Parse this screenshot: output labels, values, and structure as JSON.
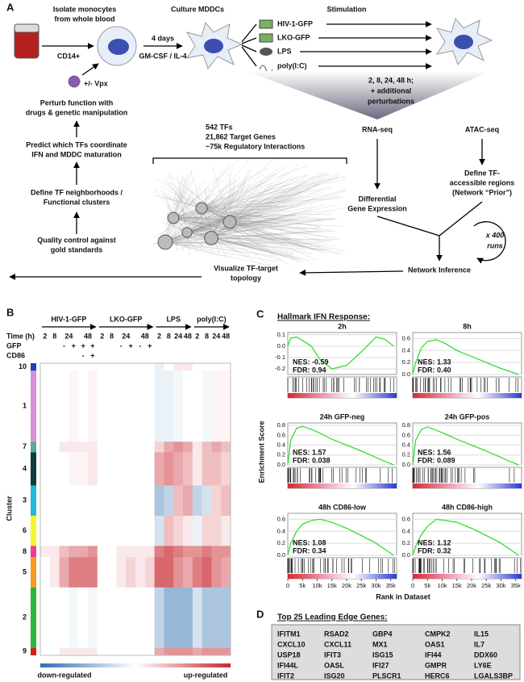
{
  "panel_a": {
    "label": "A",
    "isolate": [
      "Isolate monocytes",
      "from whole blood"
    ],
    "cd14": "CD14+",
    "vpx": "+/- Vpx",
    "culture": "Culture MDDCs",
    "days": "4 days",
    "cytokines": "GM-CSF / IL-4",
    "stimulation": "Stimulation",
    "stimuli": [
      "HIV-1-GFP",
      "LKO-GFP",
      "LPS",
      "poly(I:C)"
    ],
    "timepoints": [
      "2, 8, 24, 48 h;",
      "+ additional",
      "perturbations"
    ],
    "rna_seq": "RNA-seq",
    "atac_seq": "ATAC-seq",
    "differential": [
      "Differential",
      "Gene Expression"
    ],
    "define_regions": [
      "Define TF-",
      "accessible regions",
      "(Network “Prior”)"
    ],
    "runs": [
      "x 400",
      "runs"
    ],
    "network_inference": "Network Inference",
    "visualize": [
      "Visualize TF-target",
      "topology"
    ],
    "network_stats": [
      "542 TFs",
      "21,862 Target Genes",
      "~75k Regulatory Interactions"
    ],
    "pipeline": [
      [
        "Perturb function with",
        "drugs & genetic manipulation"
      ],
      [
        "Predict which TFs coordinate",
        "IFN and MDDC maturation"
      ],
      [
        "Define TF neighborhoods /",
        "Functional clusters"
      ],
      [
        "Quality control against",
        "gold standards"
      ]
    ]
  },
  "panel_b": {
    "label": "B",
    "groups": [
      {
        "name": "HIV-1-GFP",
        "times": [
          2,
          8,
          24,
          48
        ]
      },
      {
        "name": "LKO-GFP",
        "times": [
          2,
          8,
          24,
          48
        ]
      },
      {
        "name": "LPS",
        "times": [
          2,
          8,
          24,
          48
        ]
      },
      {
        "name": "poly(I:C)",
        "times": [
          2,
          8,
          24,
          48
        ]
      }
    ],
    "row_labels": [
      "Time (h)",
      "GFP",
      "CD86"
    ],
    "gfp": [
      null,
      null,
      "-",
      "+",
      "+",
      "+",
      null,
      null,
      "-",
      "+",
      "-",
      "+",
      null,
      null,
      null,
      null,
      null,
      null,
      null,
      null
    ],
    "cd86": [
      null,
      null,
      null,
      null,
      "-",
      "+",
      null,
      null,
      null,
      null,
      null,
      null,
      null,
      null,
      null,
      null,
      null,
      null,
      null,
      null
    ],
    "cluster_label": "Cluster",
    "clusters": [
      {
        "label": "10",
        "color": "#1f3fbf",
        "values": [
          0,
          0,
          0,
          0,
          0,
          0,
          0,
          0,
          0,
          0,
          0,
          0,
          -0.1,
          0,
          0.1,
          0.1,
          0,
          0,
          0,
          0
        ]
      },
      {
        "label": "1",
        "color": "#d88fd8",
        "values": [
          0,
          0,
          0,
          0.05,
          0,
          0.05,
          0,
          0,
          0,
          0,
          0,
          0,
          -0.1,
          -0.1,
          -0.05,
          0,
          0,
          -0.05,
          0.05,
          0.05
        ]
      },
      {
        "label": "7",
        "color": "#5aa89a",
        "values": [
          0,
          0,
          0.1,
          0.1,
          0.1,
          0.1,
          0,
          0,
          0,
          0,
          0,
          0,
          0.2,
          0.4,
          0.5,
          0.4,
          0.1,
          0.3,
          0.4,
          0.3
        ]
      },
      {
        "label": "4",
        "color": "#0e3c3c",
        "values": [
          0,
          0,
          0,
          0.05,
          0.05,
          0.1,
          0,
          0,
          0,
          0,
          0,
          0,
          0.4,
          0.5,
          0.4,
          0.3,
          0.1,
          0.3,
          0.3,
          0.2
        ]
      },
      {
        "label": "3",
        "color": "#22b8d8",
        "values": [
          0,
          0,
          0,
          0,
          0,
          0,
          0,
          0,
          0,
          0,
          0,
          0,
          -0.4,
          -0.3,
          0.3,
          0.4,
          -0.3,
          -0.2,
          0.2,
          0.3
        ]
      },
      {
        "label": "6",
        "color": "#f5f532",
        "values": [
          0,
          0,
          0,
          0,
          0,
          0,
          0,
          0,
          0,
          0,
          0,
          0,
          -0.2,
          0.3,
          0.2,
          0.1,
          -0.1,
          0.2,
          0.2,
          0.1
        ]
      },
      {
        "label": "8",
        "color": "#f03c8c",
        "values": [
          0.1,
          0.1,
          0.3,
          0.4,
          0.4,
          0.5,
          0,
          0,
          0.1,
          0.1,
          0.1,
          0.1,
          0.6,
          0.7,
          0.6,
          0.5,
          0.5,
          0.6,
          0.5,
          0.5
        ]
      },
      {
        "label": "5",
        "color": "#f59a1e",
        "values": [
          0,
          0.1,
          0.4,
          0.6,
          0.6,
          0.6,
          0,
          0,
          0.1,
          0.2,
          0.1,
          0.2,
          0.7,
          0.7,
          0.5,
          0.4,
          0.6,
          0.7,
          0.5,
          0.4
        ]
      },
      {
        "label": "2",
        "color": "#2fb43a",
        "values": [
          0,
          0,
          0,
          -0.05,
          0,
          -0.05,
          0,
          0,
          0,
          0,
          0,
          0,
          -0.3,
          -0.5,
          -0.5,
          -0.5,
          -0.2,
          -0.4,
          -0.4,
          -0.4
        ]
      },
      {
        "label": "9",
        "color": "#d42020",
        "values": [
          0,
          0,
          0.1,
          0.1,
          0.1,
          0.1,
          0,
          0,
          0,
          0,
          0,
          0,
          0.4,
          0.5,
          0.5,
          0.5,
          0.4,
          0.5,
          0.5,
          0.5
        ]
      }
    ],
    "colors": {
      "low": "#2f6fb0",
      "mid": "#ffffff",
      "high": "#c8262e"
    },
    "limits": [
      -1,
      1
    ],
    "legend": [
      "down-regulated",
      "up-regulated"
    ]
  },
  "panel_c": {
    "label": "C",
    "title": "Hallmark IFN Response:",
    "ylabel": "Enrichment Score",
    "xlabel": "Rank in Dataset",
    "color": "#33dd33",
    "xlim": [
      0,
      37000
    ],
    "xticks": [
      0,
      {
        "value": 5000,
        "label": "5k"
      },
      {
        "value": 10000,
        "label": "10k"
      },
      {
        "value": 15000,
        "label": "15k"
      },
      {
        "value": 20000,
        "label": "20k"
      },
      {
        "value": 25000,
        "label": "25k"
      },
      {
        "value": 30000,
        "label": "30k"
      },
      {
        "value": 35000,
        "label": "35k"
      }
    ],
    "x": [
      0,
      1000,
      3000,
      5000,
      8000,
      11000,
      15000,
      20000,
      25000,
      30000,
      33000,
      36000
    ],
    "plots": [
      {
        "title": "2h",
        "nes": "NES: -0.59",
        "fdr": "FDR: 0.94",
        "ylim": [
          -0.25,
          0.12
        ],
        "yticks": [
          0.1,
          {
            "value": 0,
            "label": "0.0"
          },
          -0.1,
          -0.2
        ],
        "values": [
          0,
          0.07,
          0.08,
          0.05,
          0,
          -0.12,
          -0.2,
          -0.17,
          -0.05,
          0.08,
          0.06,
          0
        ]
      },
      {
        "title": "8h",
        "nes": "NES: 1.33",
        "fdr": "FDR: 0.40",
        "ylim": [
          0,
          0.7
        ],
        "yticks": [
          0.6,
          0.4,
          0.2,
          {
            "value": 0,
            "label": "0.0"
          }
        ],
        "values": [
          0,
          0.2,
          0.45,
          0.55,
          0.58,
          0.52,
          0.4,
          0.3,
          0.2,
          0.1,
          0.05,
          0
        ]
      },
      {
        "title": "24h GFP-neg",
        "nes": "NES: 1.57",
        "fdr": "FDR: 0.038",
        "ylim": [
          0,
          0.85
        ],
        "yticks": [
          0.8,
          0.6,
          0.4,
          0.2,
          {
            "value": 0,
            "label": "0.0"
          }
        ],
        "values": [
          0,
          0.5,
          0.74,
          0.78,
          0.72,
          0.64,
          0.52,
          0.4,
          0.28,
          0.15,
          0.07,
          0
        ]
      },
      {
        "title": "24h GFP-pos",
        "nes": "NES: 1.56",
        "fdr": "FDR: 0.089",
        "ylim": [
          0,
          0.85
        ],
        "yticks": [
          0.8,
          0.6,
          0.4,
          0.2,
          {
            "value": 0,
            "label": "0.0"
          }
        ],
        "values": [
          0,
          0.5,
          0.72,
          0.77,
          0.7,
          0.63,
          0.52,
          0.4,
          0.28,
          0.15,
          0.07,
          0
        ]
      },
      {
        "title": "48h CD86-low",
        "nes": "NES: 1.08",
        "fdr": "FDR: 0.34",
        "ylim": [
          0,
          0.7
        ],
        "yticks": [
          0.6,
          0.4,
          0.2,
          {
            "value": 0,
            "label": "0.0"
          }
        ],
        "values": [
          0,
          0.2,
          0.4,
          0.52,
          0.58,
          0.6,
          0.55,
          0.45,
          0.33,
          0.2,
          0.1,
          0
        ]
      },
      {
        "title": "48h CD86-high",
        "nes": "NES: 1.12",
        "fdr": "FDR: 0.32",
        "ylim": [
          0,
          0.7
        ],
        "yticks": [
          0.6,
          0.4,
          0.2,
          {
            "value": 0,
            "label": "0.0"
          }
        ],
        "values": [
          0,
          0.15,
          0.35,
          0.48,
          0.6,
          0.58,
          0.55,
          0.45,
          0.33,
          0.2,
          0.1,
          0
        ]
      }
    ]
  },
  "panel_d": {
    "label": "D",
    "title": "Top 25 Leading Edge Genes:",
    "table": {
      "rows": [
        [
          "IFITM1",
          "RSAD2",
          "GBP4",
          "CMPK2",
          "IL15"
        ],
        [
          "CXCL10",
          "CXCL11",
          "MX1",
          "OAS1",
          "IL7"
        ],
        [
          "USP18",
          "IFIT3",
          "ISG15",
          "IFI44",
          "DDX60"
        ],
        [
          "IFI44L",
          "OASL",
          "IFI27",
          "GMPR",
          "LY6E"
        ],
        [
          "IFIT2",
          "ISG20",
          "PLSCR1",
          "HERC6",
          "LGALS3BP"
        ]
      ]
    }
  }
}
